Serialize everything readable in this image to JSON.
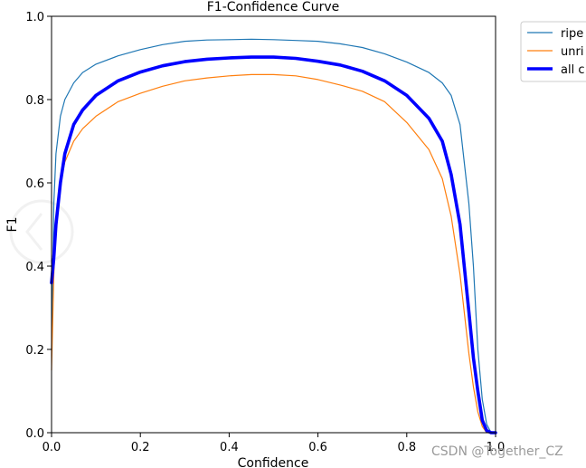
{
  "chart_data": {
    "type": "line",
    "title": "F1-Confidence Curve",
    "xlabel": "Confidence",
    "ylabel": "F1",
    "xlim": [
      0.0,
      1.0
    ],
    "ylim": [
      0.0,
      1.0
    ],
    "x_ticks": [
      "0.0",
      "0.2",
      "0.4",
      "0.6",
      "0.8",
      "1.0"
    ],
    "y_ticks": [
      "0.0",
      "0.2",
      "0.4",
      "0.6",
      "0.8",
      "1.0"
    ],
    "grid": false,
    "legend_position": "outside-top-right",
    "legend_entries": [
      "ripe",
      "unri",
      "all c"
    ],
    "series": [
      {
        "name": "ripe",
        "color": "#1f77b4",
        "x": [
          0.0,
          0.005,
          0.01,
          0.02,
          0.03,
          0.05,
          0.07,
          0.1,
          0.15,
          0.2,
          0.25,
          0.3,
          0.35,
          0.4,
          0.45,
          0.5,
          0.55,
          0.6,
          0.65,
          0.7,
          0.75,
          0.8,
          0.85,
          0.88,
          0.9,
          0.92,
          0.94,
          0.95,
          0.96,
          0.97,
          0.98,
          0.99,
          1.0
        ],
        "values": [
          0.2,
          0.55,
          0.67,
          0.76,
          0.8,
          0.84,
          0.865,
          0.885,
          0.905,
          0.92,
          0.932,
          0.94,
          0.943,
          0.944,
          0.945,
          0.944,
          0.942,
          0.94,
          0.934,
          0.925,
          0.91,
          0.89,
          0.865,
          0.84,
          0.81,
          0.74,
          0.55,
          0.4,
          0.2,
          0.08,
          0.02,
          0.0,
          0.0
        ]
      },
      {
        "name": "unri",
        "color": "#ff7f0e",
        "x": [
          0.0,
          0.005,
          0.01,
          0.02,
          0.03,
          0.05,
          0.07,
          0.1,
          0.15,
          0.2,
          0.25,
          0.3,
          0.35,
          0.4,
          0.45,
          0.5,
          0.55,
          0.6,
          0.65,
          0.7,
          0.75,
          0.8,
          0.85,
          0.88,
          0.9,
          0.92,
          0.94,
          0.95,
          0.96,
          0.97,
          0.98,
          0.99,
          1.0
        ],
        "values": [
          0.15,
          0.38,
          0.5,
          0.6,
          0.65,
          0.7,
          0.73,
          0.76,
          0.795,
          0.815,
          0.832,
          0.845,
          0.852,
          0.857,
          0.86,
          0.86,
          0.857,
          0.848,
          0.835,
          0.82,
          0.795,
          0.745,
          0.68,
          0.61,
          0.52,
          0.38,
          0.19,
          0.11,
          0.05,
          0.015,
          0.0,
          0.0,
          0.0
        ]
      },
      {
        "name": "all c",
        "color": "#0000ff",
        "x": [
          0.0,
          0.005,
          0.01,
          0.02,
          0.03,
          0.05,
          0.07,
          0.1,
          0.15,
          0.2,
          0.25,
          0.3,
          0.35,
          0.4,
          0.45,
          0.5,
          0.55,
          0.6,
          0.65,
          0.7,
          0.75,
          0.8,
          0.85,
          0.88,
          0.9,
          0.92,
          0.94,
          0.95,
          0.96,
          0.97,
          0.98,
          0.99,
          1.0
        ],
        "values": [
          0.36,
          0.42,
          0.5,
          0.6,
          0.67,
          0.74,
          0.775,
          0.81,
          0.845,
          0.866,
          0.881,
          0.891,
          0.897,
          0.9,
          0.902,
          0.902,
          0.899,
          0.892,
          0.883,
          0.868,
          0.845,
          0.81,
          0.755,
          0.7,
          0.62,
          0.5,
          0.29,
          0.18,
          0.1,
          0.03,
          0.005,
          0.0,
          0.0
        ]
      }
    ]
  },
  "watermark": "CSDN @Together_CZ"
}
